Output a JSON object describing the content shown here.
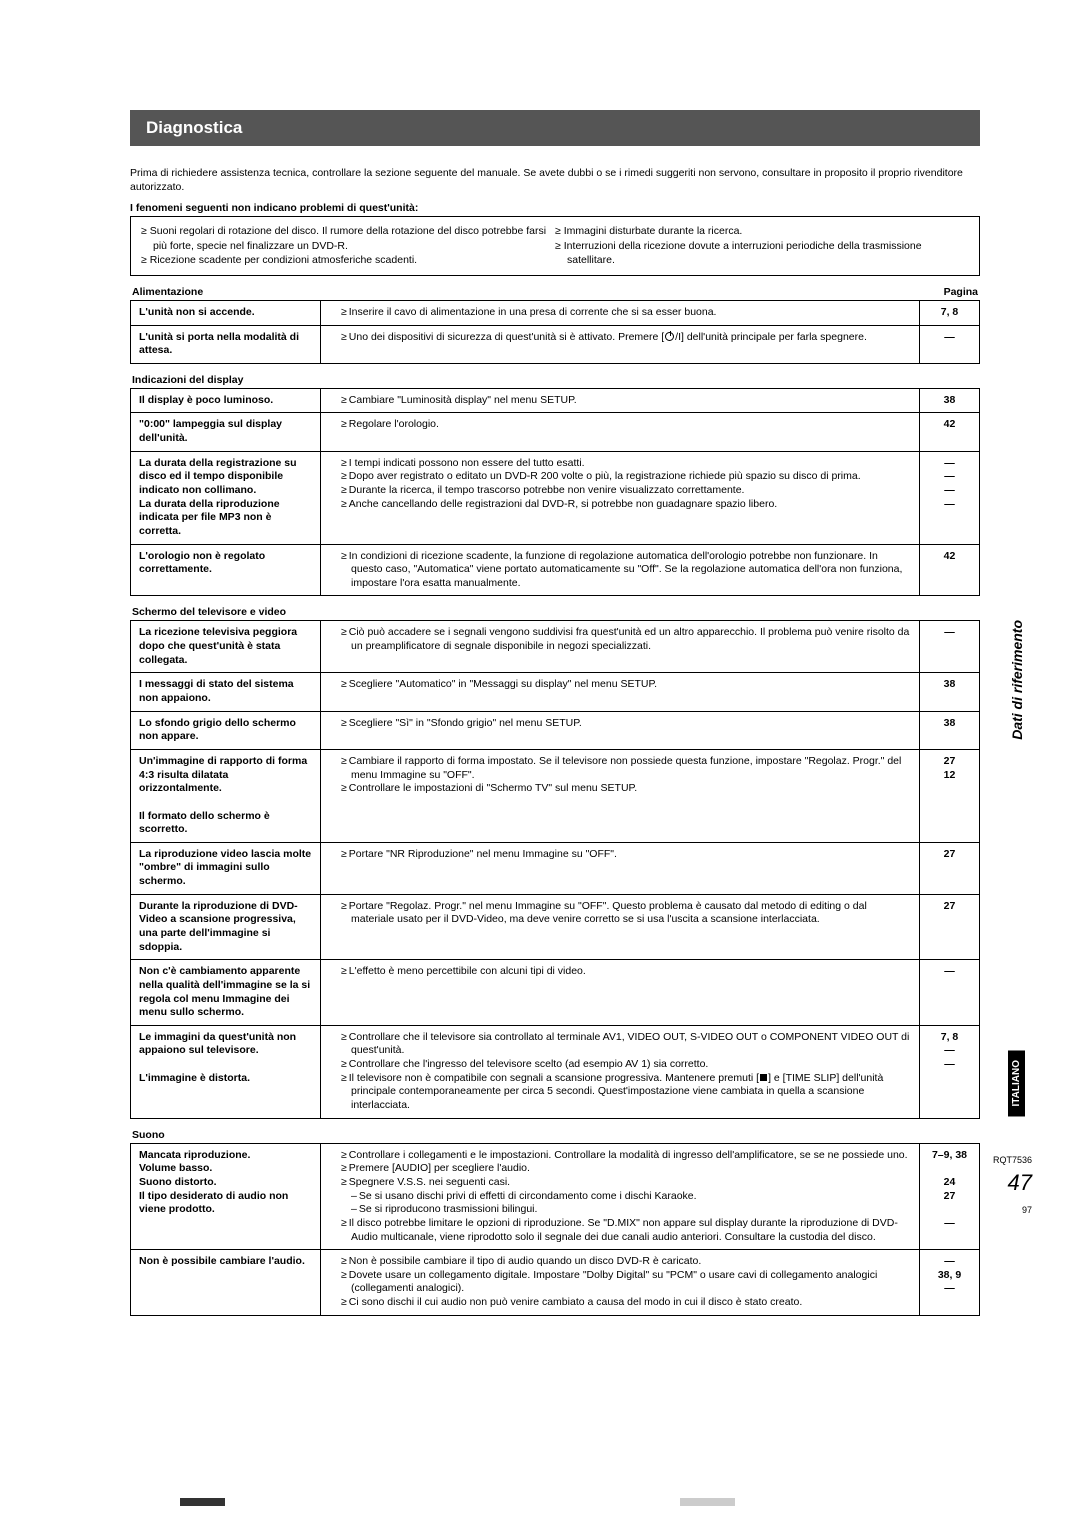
{
  "title": "Diagnostica",
  "intro": "Prima di richiedere assistenza tecnica, controllare la sezione seguente del manuale. Se avete dubbi o se i rimedi suggeriti non servono, consultare in proposito il proprio rivenditore autorizzato.",
  "nonProblemsHeader": "I fenomeni seguenti non indicano problemi di quest'unità:",
  "nonProblemsLeft": [
    "Suoni regolari di rotazione del disco. Il rumore della rotazione del disco potrebbe farsi più forte, specie nel finalizzare un DVD-R.",
    "Ricezione scadente per condizioni atmosferiche scadenti."
  ],
  "nonProblemsRight": [
    "Immagini disturbate durante la ricerca.",
    "Interruzioni della ricezione dovute a interruzioni periodiche della trasmissione satellitare."
  ],
  "pageLabel": "Pagina",
  "sections": [
    {
      "name": "Alimentazione",
      "showPageLabel": true,
      "rows": [
        {
          "problem": "L'unità non si accende.",
          "remedies": [
            {
              "t": "Inserire il cavo di alimentazione in una presa di corrente che si sa esser buona."
            }
          ],
          "pages": [
            "7, 8"
          ]
        },
        {
          "problem": "L'unità si porta nella modalità di attesa.",
          "remedies": [
            {
              "t": "Uno dei dispositivi di sicurezza di quest'unità si è attivato.  Premere [",
              "icon": "power",
              "t2": "/I] dell'unità principale per farla spegnere."
            }
          ],
          "pages": [
            "—"
          ]
        }
      ]
    },
    {
      "name": "Indicazioni del display",
      "rows": [
        {
          "problem": "Il display è poco luminoso.",
          "remedies": [
            {
              "t": "Cambiare \"Luminosità display\" nel menu SETUP."
            }
          ],
          "pages": [
            "38"
          ]
        },
        {
          "problem": "\"0:00\" lampeggia sul display dell'unità.",
          "remedies": [
            {
              "t": "Regolare l'orologio."
            }
          ],
          "pages": [
            "42"
          ]
        },
        {
          "problem": "La durata della registrazione su disco ed il tempo disponibile indicato non collimano.\nLa durata della riproduzione indicata per file MP3 non è corretta.",
          "remedies": [
            {
              "t": "I tempi indicati possono non essere del tutto esatti."
            },
            {
              "t": "Dopo aver registrato o editato un DVD-R 200 volte o più, la registrazione richiede più spazio su disco di prima."
            },
            {
              "t": "Durante la ricerca, il tempo trascorso potrebbe non venire visualizzato correttamente."
            },
            {
              "t": "Anche cancellando delle registrazioni dal DVD-R, si potrebbe non guadagnare spazio libero."
            }
          ],
          "pages": [
            "—",
            "—",
            "—",
            "—"
          ]
        },
        {
          "problem": "L'orologio non è regolato correttamente.",
          "remedies": [
            {
              "t": "In condizioni di ricezione scadente, la funzione di regolazione automatica dell'orologio potrebbe non funzionare. In questo caso, \"Automatica\" viene portato automaticamente su \"Off\". Se la regolazione automatica dell'ora non funziona, impostare l'ora esatta manualmente."
            }
          ],
          "pages": [
            "42"
          ]
        }
      ]
    },
    {
      "name": "Schermo del televisore e video",
      "rows": [
        {
          "problem": "La ricezione televisiva peggiora dopo che quest'unità è stata collegata.",
          "remedies": [
            {
              "t": "Ciò può accadere se i segnali vengono suddivisi fra quest'unità ed un altro apparecchio. Il problema può venire risolto da un preamplificatore di segnale disponibile in negozi specializzati."
            }
          ],
          "pages": [
            "—"
          ]
        },
        {
          "problem": "I messaggi di stato del sistema non appaiono.",
          "remedies": [
            {
              "t": "Scegliere \"Automatico\" in \"Messaggi su display\" nel menu SETUP."
            }
          ],
          "pages": [
            "38"
          ]
        },
        {
          "problem": "Lo sfondo grigio dello schermo non appare.",
          "remedies": [
            {
              "t": "Scegliere \"Sì\" in \"Sfondo grigio\" nel menu SETUP."
            }
          ],
          "pages": [
            "38"
          ]
        },
        {
          "problem": "Un'immagine di rapporto di forma 4:3 risulta dilatata orizzontalmente.\n\nIl formato dello schermo è scorretto.",
          "remedies": [
            {
              "t": "Cambiare il rapporto di forma impostato.  Se il televisore non possiede questa funzione, impostare \"Regolaz. Progr.\" del menu Immagine su \"OFF\"."
            },
            {
              "t": "Controllare le impostazioni di \"Schermo TV\" sul menu SETUP."
            }
          ],
          "pages": [
            "27",
            "12"
          ]
        },
        {
          "problem": "La riproduzione video lascia molte \"ombre\" di immagini sullo schermo.",
          "remedies": [
            {
              "t": "Portare \"NR Riproduzione\" nel menu Immagine su \"OFF\"."
            }
          ],
          "pages": [
            "27"
          ]
        },
        {
          "problem": "Durante la riproduzione di DVD-Video a scansione progressiva, una parte dell'immagine si sdoppia.",
          "remedies": [
            {
              "t": "Portare \"Regolaz. Progr.\" nel menu Immagine su \"OFF\". Questo problema è causato dal metodo di editing o dal materiale usato per il DVD-Video, ma deve venire corretto se si usa l'uscita a scansione interlacciata."
            }
          ],
          "pages": [
            "27"
          ]
        },
        {
          "problem": "Non c'è cambiamento apparente nella qualità dell'immagine se la si regola col menu Immagine dei menu sullo schermo.",
          "remedies": [
            {
              "t": "L'effetto è meno percettibile con alcuni tipi di video."
            }
          ],
          "pages": [
            "—"
          ]
        },
        {
          "problem": "Le immagini da quest'unità non appaiono sul televisore.\n\nL'immagine è distorta.",
          "remedies": [
            {
              "t": "Controllare che il televisore sia controllato al terminale AV1, VIDEO OUT, S-VIDEO OUT o COMPONENT VIDEO OUT di quest'unità."
            },
            {
              "t": "Controllare che l'ingresso del televisore scelto (ad esempio AV 1) sia corretto."
            },
            {
              "t": "Il televisore non è compatibile con segnali a scansione progressiva. Mantenere premuti [",
              "icon": "stop",
              "t2": "] e [TIME SLIP] dell'unità principale contemporaneamente per circa 5 secondi. Quest'impostazione viene cambiata in quella a scansione interlacciata."
            }
          ],
          "pages": [
            "7, 8",
            "—",
            "—"
          ]
        }
      ]
    },
    {
      "name": "Suono",
      "rows": [
        {
          "problem": "Mancata riproduzione.\nVolume basso.\nSuono distorto.\nIl tipo desiderato di audio non viene prodotto.",
          "remedies": [
            {
              "t": "Controllare i collegamenti e le impostazioni.  Controllare la modalità di ingresso dell'amplificatore, se se ne possiede uno."
            },
            {
              "t": "Premere [AUDIO] per scegliere l'audio."
            },
            {
              "t": "Spegnere V.S.S. nei seguenti casi."
            },
            {
              "t": "Se si usano dischi privi di effetti di circondamento come i dischi Karaoke.",
              "sub": true
            },
            {
              "t": "Se si riproducono trasmissioni bilingui.",
              "sub": true
            },
            {
              "t": "Il disco potrebbe limitare le opzioni di riproduzione.  Se \"D.MIX\" non appare sul display durante la riproduzione di DVD-Audio multicanale, viene riprodotto solo il segnale dei due canali audio anteriori.  Consultare la custodia del disco."
            }
          ],
          "pages": [
            "7–9, 38",
            "",
            "24",
            "27",
            "",
            "—"
          ]
        },
        {
          "problem": "Non è possibile cambiare l'audio.",
          "remedies": [
            {
              "t": "Non è possibile cambiare il tipo di audio quando un disco DVD-R è caricato."
            },
            {
              "t": "Dovete usare un collegamento digitale. Impostare \"Dolby Digital\" su \"PCM\" o usare cavi di collegamento analogici (collegamenti analogici)."
            },
            {
              "t": "Ci sono dischi il cui audio non può venire cambiato a causa del modo in cui il disco è stato creato."
            }
          ],
          "pages": [
            "—",
            "38, 9",
            "—"
          ]
        }
      ]
    }
  ],
  "sideRef": "Dati di riferimento",
  "sideLang": "ITALIANO",
  "footerCode": "RQT7536",
  "pageNum": "47",
  "sheetNum": "97"
}
